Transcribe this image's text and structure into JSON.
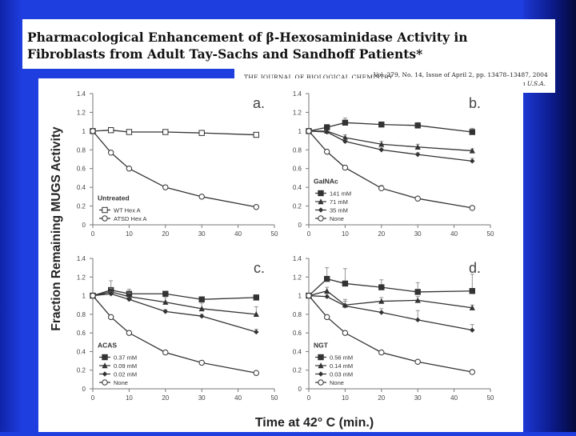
{
  "title": {
    "line1": "Pharmacological Enhancement of β-Hexosaminidase Activity in",
    "line2": "Fibroblasts from Adult Tay-Sachs and Sandhoff Patients*"
  },
  "citation": {
    "journal": "THE JOURNAL OF BIOLOGICAL CHEMISTRY",
    "issue": "Vol. 279, No. 14, Issue of April 2, pp. 13478–13487, 2004",
    "printed": "Printed in U.S.A."
  },
  "figure": {
    "ylabel": "Fraction Remaining MUGS Activity",
    "xlabel": "Time at 42° C (min.)"
  },
  "colors": {
    "background": "#1f3ee0",
    "series": "#333333"
  },
  "chart_data": [
    {
      "type": "line",
      "panel": "a.",
      "treatment": "Untreated",
      "xlim": [
        0,
        50
      ],
      "ylim": [
        0,
        1.4
      ],
      "xticks": [
        "0",
        "10",
        "20",
        "30",
        "40",
        "50"
      ],
      "yticks": [
        "0",
        "0.2",
        "0.4",
        "0.6",
        "0.8",
        "1",
        "1.2",
        "1.4"
      ],
      "legend_position": "bottom-left",
      "series": [
        {
          "name": "WT Hex A",
          "marker": "square-open",
          "x": [
            0,
            5,
            10,
            20,
            30,
            45
          ],
          "values": [
            1.0,
            1.01,
            0.99,
            0.99,
            0.98,
            0.96
          ],
          "err": [
            0,
            0.02,
            0,
            0.02,
            0,
            0
          ]
        },
        {
          "name": "ATSD Hex A",
          "marker": "circle-open",
          "x": [
            0,
            5,
            10,
            20,
            30,
            45
          ],
          "values": [
            1.0,
            0.77,
            0.6,
            0.4,
            0.3,
            0.19
          ],
          "err": [
            0,
            0.02,
            0.02,
            0.02,
            0.02,
            0
          ]
        }
      ]
    },
    {
      "type": "line",
      "panel": "b.",
      "treatment": "GalNAc",
      "xlim": [
        0,
        50
      ],
      "ylim": [
        0,
        1.4
      ],
      "xticks": [
        "0",
        "10",
        "20",
        "30",
        "40",
        "50"
      ],
      "yticks": [
        "0",
        "0.2",
        "0.4",
        "0.6",
        "0.8",
        "1",
        "1.2",
        "1.4"
      ],
      "legend_position": "bottom-left",
      "series": [
        {
          "name": "141 mM",
          "marker": "square-filled",
          "x": [
            0,
            5,
            10,
            20,
            30,
            45
          ],
          "values": [
            1.0,
            1.04,
            1.09,
            1.07,
            1.06,
            0.99
          ],
          "err": [
            0,
            0.03,
            0.05,
            0.02,
            0.03,
            0.04
          ]
        },
        {
          "name": "71 mM",
          "marker": "triangle-filled",
          "x": [
            0,
            5,
            10,
            20,
            30,
            45
          ],
          "values": [
            1.0,
            1.0,
            0.93,
            0.86,
            0.83,
            0.79
          ],
          "err": [
            0,
            0,
            0.03,
            0.03,
            0.03,
            0.02
          ]
        },
        {
          "name": "35 mM",
          "marker": "diamond-filled",
          "x": [
            0,
            5,
            10,
            20,
            30,
            45
          ],
          "values": [
            1.0,
            0.99,
            0.89,
            0.8,
            0.75,
            0.68
          ],
          "err": [
            0,
            0,
            0.02,
            0.02,
            0.02,
            0.03
          ]
        },
        {
          "name": "None",
          "marker": "circle-open",
          "x": [
            0,
            5,
            10,
            20,
            30,
            45
          ],
          "values": [
            1.0,
            0.78,
            0.61,
            0.39,
            0.28,
            0.18
          ],
          "err": [
            0,
            0.02,
            0.02,
            0.03,
            0.02,
            0
          ]
        }
      ]
    },
    {
      "type": "line",
      "panel": "c.",
      "treatment": "ACAS",
      "xlim": [
        0,
        50
      ],
      "ylim": [
        0,
        1.4
      ],
      "xticks": [
        "0",
        "10",
        "20",
        "30",
        "40",
        "50"
      ],
      "yticks": [
        "0",
        "0.2",
        "0.4",
        "0.6",
        "0.8",
        "1",
        "1.2",
        "1.4"
      ],
      "legend_position": "bottom-left",
      "series": [
        {
          "name": "0.37 mM",
          "marker": "square-filled",
          "x": [
            0,
            5,
            10,
            20,
            30,
            45
          ],
          "values": [
            1.0,
            1.06,
            1.02,
            1.02,
            0.96,
            0.98
          ],
          "err": [
            0,
            0.1,
            0.05,
            0,
            0,
            0.03
          ]
        },
        {
          "name": "0.09 mM",
          "marker": "triangle-filled",
          "x": [
            0,
            5,
            10,
            20,
            30,
            45
          ],
          "values": [
            1.0,
            1.04,
            0.99,
            0.93,
            0.86,
            0.8
          ],
          "err": [
            0,
            0.04,
            0.04,
            0.05,
            0.06,
            0.08
          ]
        },
        {
          "name": "0.02 mM",
          "marker": "diamond-filled",
          "x": [
            0,
            5,
            10,
            20,
            30,
            45
          ],
          "values": [
            1.0,
            1.02,
            0.96,
            0.83,
            0.78,
            0.61
          ],
          "err": [
            0,
            0.02,
            0.02,
            0.02,
            0.02,
            0.03
          ]
        },
        {
          "name": "None",
          "marker": "circle-open",
          "x": [
            0,
            5,
            10,
            20,
            30,
            45
          ],
          "values": [
            1.0,
            0.77,
            0.6,
            0.39,
            0.28,
            0.17
          ],
          "err": [
            0,
            0.02,
            0.02,
            0.02,
            0,
            0
          ]
        }
      ]
    },
    {
      "type": "line",
      "panel": "d.",
      "treatment": "NGT",
      "xlim": [
        0,
        50
      ],
      "ylim": [
        0,
        1.4
      ],
      "xticks": [
        "0",
        "10",
        "20",
        "30",
        "40",
        "50"
      ],
      "yticks": [
        "0",
        "0.2",
        "0.4",
        "0.6",
        "0.8",
        "1",
        "1.2",
        "1.4"
      ],
      "legend_position": "bottom-left",
      "series": [
        {
          "name": "0.56 mM",
          "marker": "square-filled",
          "x": [
            0,
            5,
            10,
            20,
            30,
            45
          ],
          "values": [
            1.0,
            1.18,
            1.13,
            1.09,
            1.04,
            1.05
          ],
          "err": [
            0,
            0.12,
            0.16,
            0.08,
            0.1,
            0.18
          ]
        },
        {
          "name": "0.14 mM",
          "marker": "triangle-filled",
          "x": [
            0,
            5,
            10,
            20,
            30,
            45
          ],
          "values": [
            1.0,
            1.05,
            0.9,
            0.94,
            0.95,
            0.87
          ],
          "err": [
            0,
            0.04,
            0.06,
            0.04,
            0.04,
            0.03
          ]
        },
        {
          "name": "0.03 mM",
          "marker": "diamond-filled",
          "x": [
            0,
            5,
            10,
            20,
            30,
            45
          ],
          "values": [
            1.0,
            0.99,
            0.89,
            0.82,
            0.74,
            0.63
          ],
          "err": [
            0,
            0.03,
            0.05,
            0.04,
            0.1,
            0.06
          ]
        },
        {
          "name": "None",
          "marker": "circle-open",
          "x": [
            0,
            5,
            10,
            20,
            30,
            45
          ],
          "values": [
            1.0,
            0.77,
            0.6,
            0.39,
            0.29,
            0.18
          ],
          "err": [
            0,
            0.02,
            0.02,
            0.02,
            0.02,
            0
          ]
        }
      ]
    }
  ]
}
